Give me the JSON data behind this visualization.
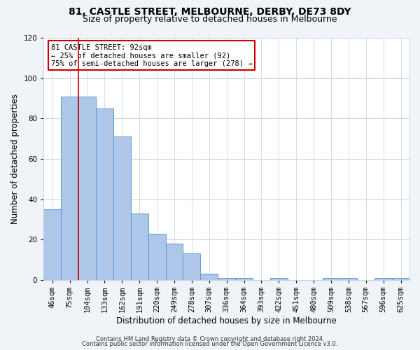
{
  "title1": "81, CASTLE STREET, MELBOURNE, DERBY, DE73 8DY",
  "title2": "Size of property relative to detached houses in Melbourne",
  "xlabel": "Distribution of detached houses by size in Melbourne",
  "ylabel": "Number of detached properties",
  "categories": [
    "46sqm",
    "75sqm",
    "104sqm",
    "133sqm",
    "162sqm",
    "191sqm",
    "220sqm",
    "249sqm",
    "278sqm",
    "307sqm",
    "336sqm",
    "364sqm",
    "393sqm",
    "422sqm",
    "451sqm",
    "480sqm",
    "509sqm",
    "538sqm",
    "567sqm",
    "596sqm",
    "625sqm"
  ],
  "values": [
    35,
    91,
    91,
    85,
    71,
    33,
    23,
    18,
    13,
    3,
    1,
    1,
    0,
    1,
    0,
    0,
    1,
    1,
    0,
    1,
    1
  ],
  "bar_color": "#aec6e8",
  "bar_edge_color": "#5b9bd5",
  "ylim": [
    0,
    120
  ],
  "yticks": [
    0,
    20,
    40,
    60,
    80,
    100,
    120
  ],
  "red_line_x": 1.5,
  "annotation_line1": "81 CASTLE STREET: 92sqm",
  "annotation_line2": "← 25% of detached houses are smaller (92)",
  "annotation_line3": "75% of semi-detached houses are larger (278) →",
  "annotation_box_color": "#ffffff",
  "annotation_edge_color": "#cc0000",
  "red_line_color": "#cc0000",
  "footer1": "Contains HM Land Registry data © Crown copyright and database right 2024.",
  "footer2": "Contains public sector information licensed under the Open Government Licence v3.0.",
  "background_color": "#f0f4f8",
  "plot_bg_color": "#ffffff",
  "grid_color": "#c0d0e0",
  "title1_fontsize": 10,
  "title2_fontsize": 9,
  "xlabel_fontsize": 8.5,
  "ylabel_fontsize": 8.5,
  "tick_fontsize": 7.5,
  "footer_fontsize": 6.0
}
